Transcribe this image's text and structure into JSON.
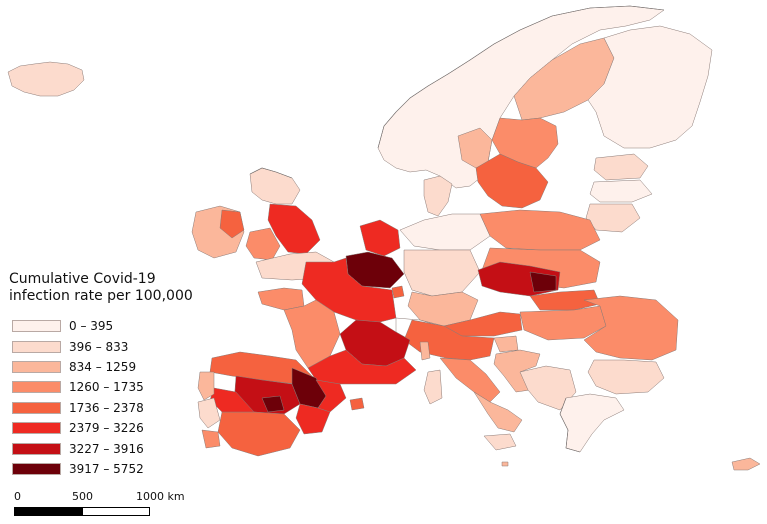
{
  "legend": {
    "title_line1": "Cumulative Covid-19",
    "title_line2": "infection rate per 100,000",
    "classes": [
      {
        "range": "0 – 395",
        "color": "#fef1ec"
      },
      {
        "range": "396 – 833",
        "color": "#fcdbcd"
      },
      {
        "range": "834 – 1259",
        "color": "#fbb79b"
      },
      {
        "range": "1260 – 1735",
        "color": "#fb8c69"
      },
      {
        "range": "1736 – 2378",
        "color": "#f5623f"
      },
      {
        "range": "2379 – 3226",
        "color": "#ee2a22"
      },
      {
        "range": "3227 – 3916",
        "color": "#c40f15"
      },
      {
        "range": "3917 – 5752",
        "color": "#6d0009"
      }
    ]
  },
  "scale": {
    "label_0": "0",
    "label_500": "500",
    "label_1000": "1000 km"
  },
  "colors": {
    "boundary": "#8a7a76",
    "sea": "#ffffff"
  }
}
